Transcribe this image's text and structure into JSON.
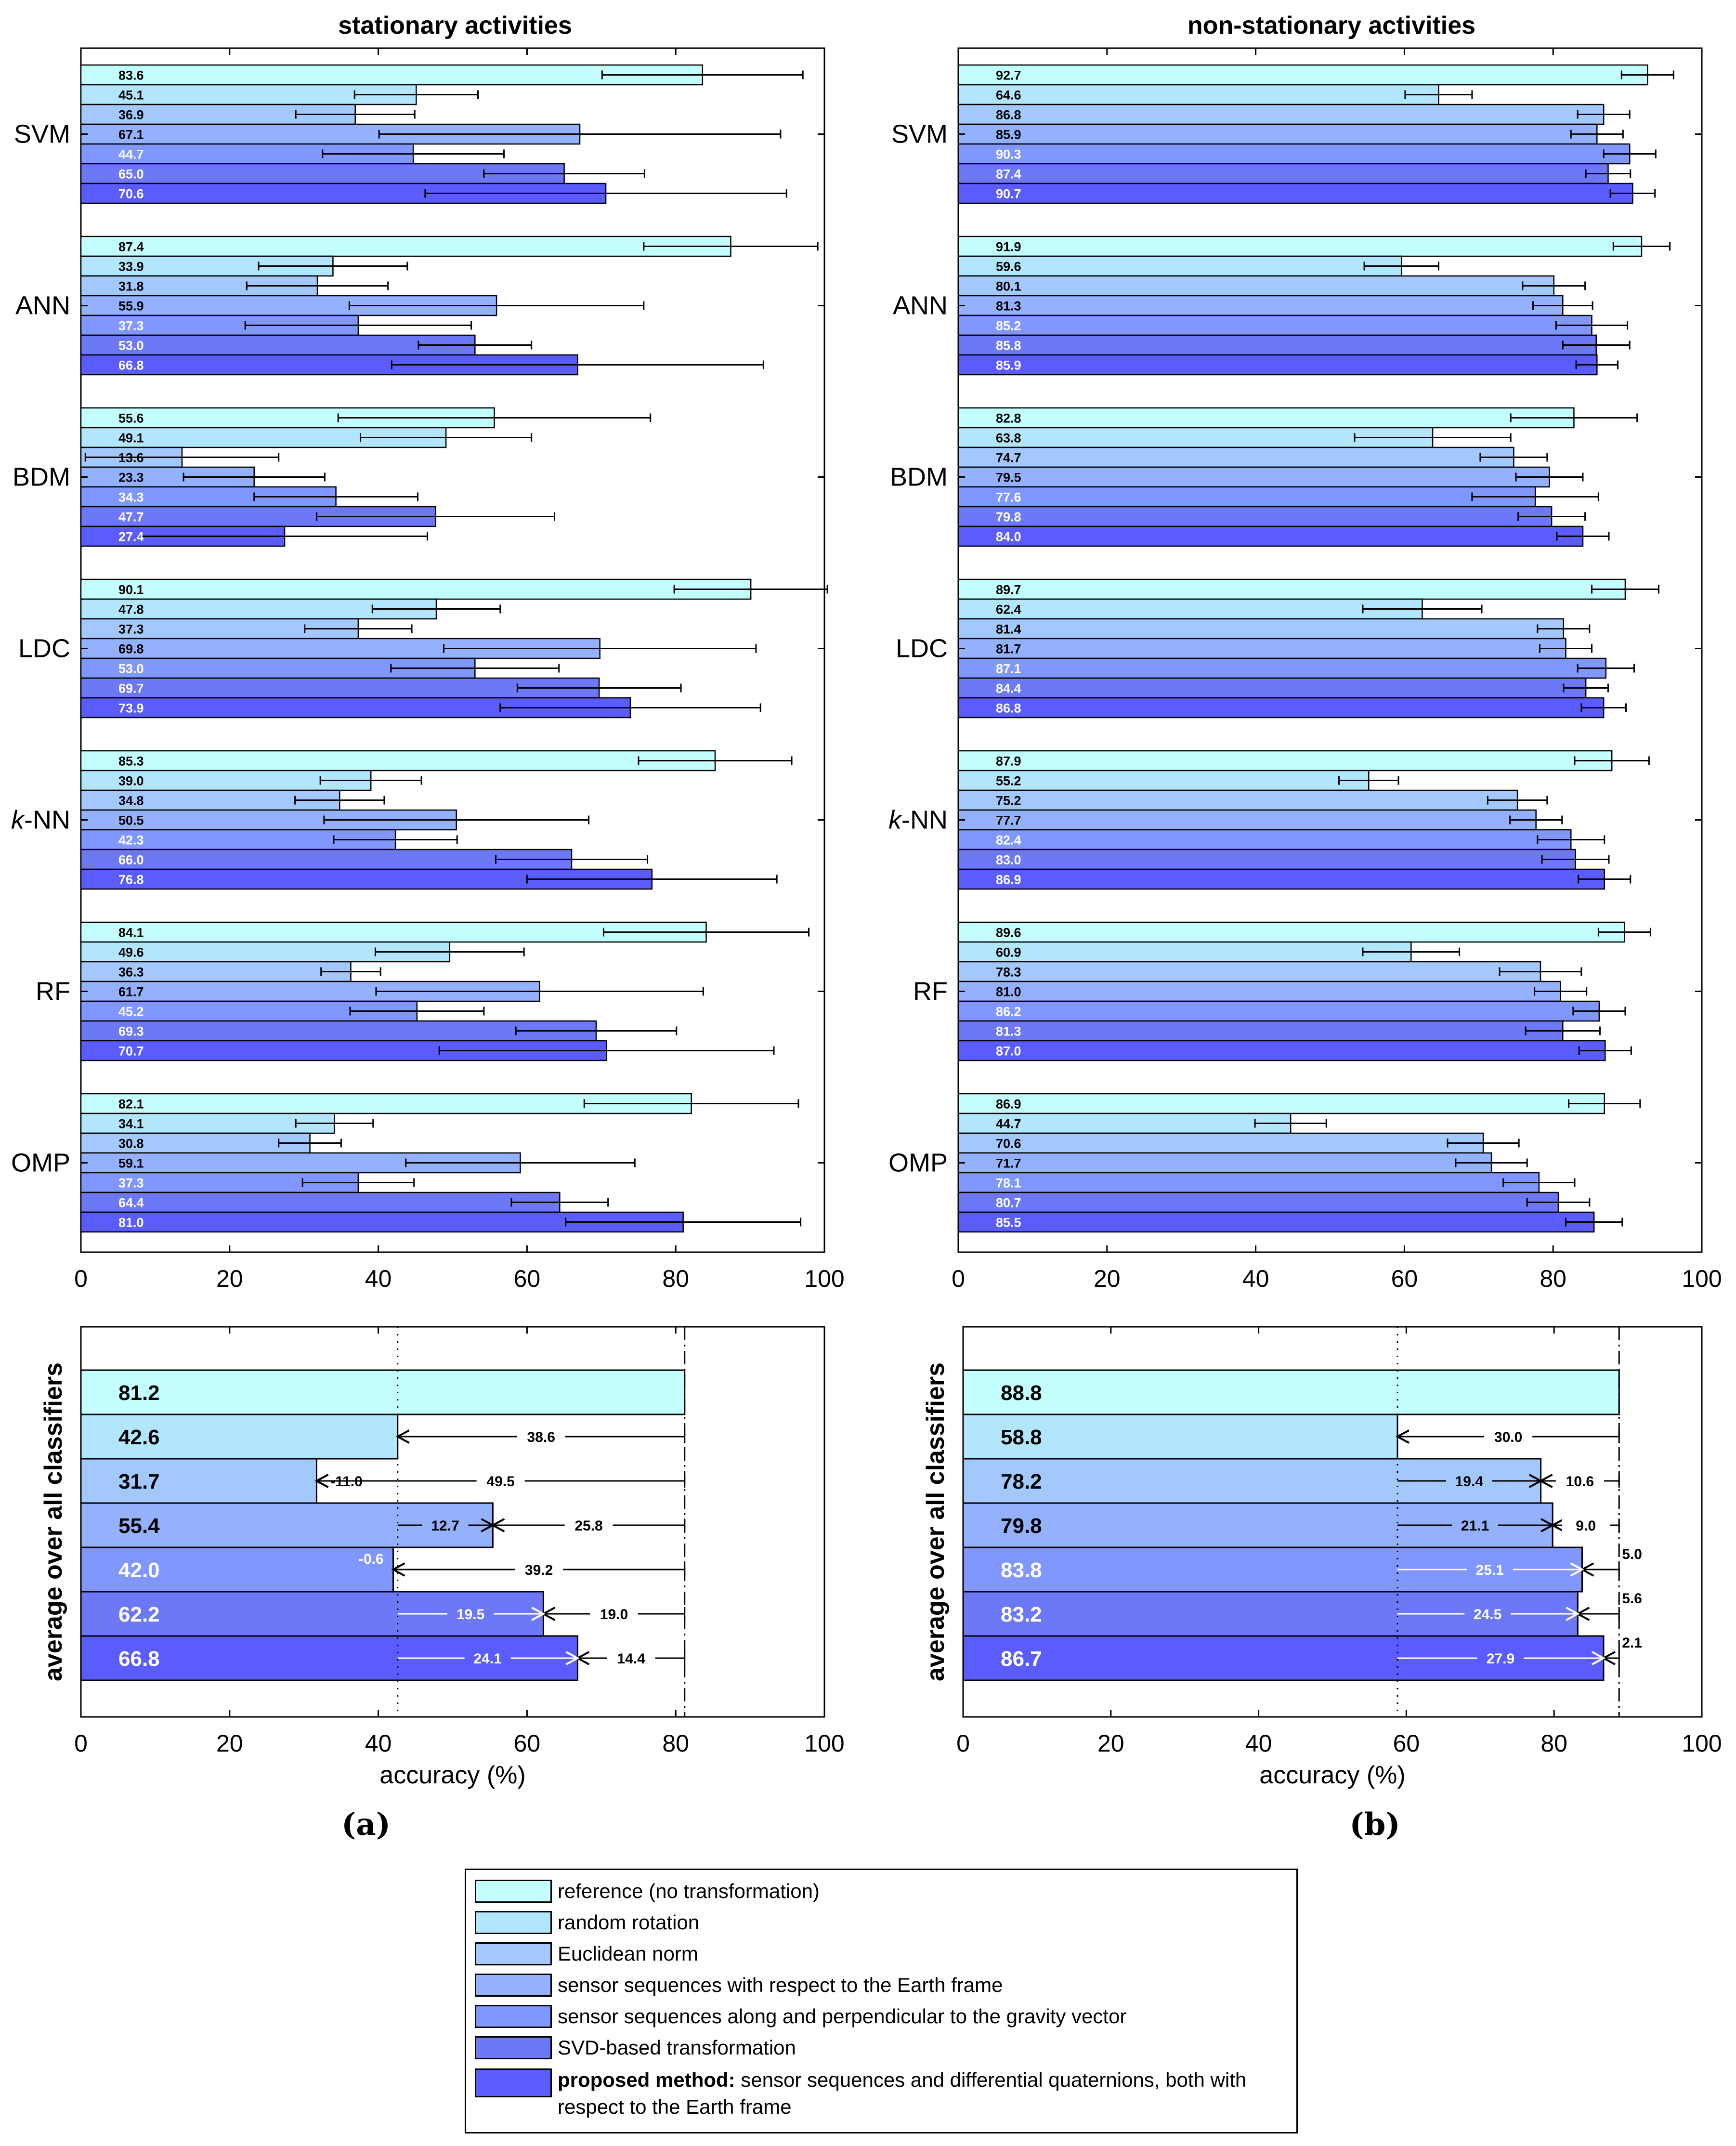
{
  "panels": [
    {
      "title": "stationary activities",
      "subfig_label": "(a)",
      "chart_data": {
        "type": "bar",
        "orientation": "horizontal",
        "xlim": [
          0,
          100
        ],
        "xticks": [
          0,
          20,
          40,
          60,
          80,
          100
        ],
        "groups": [
          {
            "name": "SVM",
            "values": [
              83.6,
              45.1,
              36.9,
              67.1,
              44.7,
              65.0,
              70.6
            ],
            "sd": [
              13.5,
              8.3,
              8.0,
              27.0,
              12.2,
              10.8,
              24.3
            ]
          },
          {
            "name": "ANN",
            "values": [
              87.4,
              33.9,
              31.8,
              55.9,
              37.3,
              53.0,
              66.8
            ],
            "sd": [
              11.7,
              10.0,
              9.5,
              19.8,
              15.2,
              7.6,
              25.0
            ]
          },
          {
            "name": "BDM",
            "values": [
              55.6,
              49.1,
              13.6,
              23.3,
              34.3,
              47.7,
              27.4
            ],
            "sd": [
              21.0,
              11.5,
              13.0,
              9.5,
              11.0,
              16.0,
              19.2
            ]
          },
          {
            "name": "LDC",
            "values": [
              90.1,
              47.8,
              37.3,
              69.8,
              53.0,
              69.7,
              73.9
            ],
            "sd": [
              10.3,
              8.6,
              7.2,
              21.0,
              11.3,
              11.0,
              17.5
            ]
          },
          {
            "name": "k-NN",
            "values": [
              85.3,
              39.0,
              34.8,
              50.5,
              42.3,
              66.0,
              76.8
            ],
            "sd": [
              10.3,
              6.8,
              6.0,
              17.8,
              8.3,
              10.2,
              16.8
            ]
          },
          {
            "name": "RF",
            "values": [
              84.1,
              49.6,
              36.3,
              61.7,
              45.2,
              69.3,
              70.7
            ],
            "sd": [
              13.8,
              10.0,
              4.0,
              22.0,
              9.0,
              10.8,
              22.5
            ]
          },
          {
            "name": "OMP",
            "values": [
              82.1,
              34.1,
              30.8,
              59.1,
              37.3,
              64.4,
              81.0
            ],
            "sd": [
              14.4,
              5.2,
              4.2,
              15.4,
              7.5,
              6.5,
              15.8
            ]
          }
        ]
      },
      "average": {
        "ylabel": "average over all classifiers",
        "xlabel": "accuracy (%)",
        "xlim": [
          0,
          100
        ],
        "xticks": [
          0,
          20,
          40,
          60,
          80,
          100
        ],
        "values": [
          81.2,
          42.6,
          31.7,
          55.4,
          42.0,
          62.2,
          66.8
        ],
        "ref_lines": [
          42.6,
          81.2
        ],
        "diff_left": [
          "",
          "",
          "-11.0",
          "12.7",
          "-0.6",
          "19.5",
          "24.1"
        ],
        "diff_right": [
          "",
          "38.6",
          "49.5",
          "25.8",
          "39.2",
          "19.0",
          "14.4"
        ]
      }
    },
    {
      "title": "non-stationary activities",
      "subfig_label": "(b)",
      "chart_data": {
        "type": "bar",
        "orientation": "horizontal",
        "xlim": [
          0,
          100
        ],
        "xticks": [
          0,
          20,
          40,
          60,
          80,
          100
        ],
        "groups": [
          {
            "name": "SVM",
            "values": [
              92.7,
              64.6,
              86.8,
              85.9,
              90.3,
              87.4,
              90.7
            ],
            "sd": [
              3.5,
              4.5,
              3.5,
              3.5,
              3.5,
              3.0,
              3.0
            ]
          },
          {
            "name": "ANN",
            "values": [
              91.9,
              59.6,
              80.1,
              81.3,
              85.2,
              85.8,
              85.9
            ],
            "sd": [
              3.8,
              5.0,
              4.2,
              4.0,
              4.8,
              4.5,
              2.8
            ]
          },
          {
            "name": "BDM",
            "values": [
              82.8,
              63.8,
              74.7,
              79.5,
              77.6,
              79.8,
              84.0
            ],
            "sd": [
              8.5,
              10.5,
              4.5,
              4.5,
              8.5,
              4.5,
              3.5
            ]
          },
          {
            "name": "LDC",
            "values": [
              89.7,
              62.4,
              81.4,
              81.7,
              87.1,
              84.4,
              86.8
            ],
            "sd": [
              4.5,
              8.0,
              3.5,
              3.5,
              3.8,
              3.0,
              3.0
            ]
          },
          {
            "name": "k-NN",
            "values": [
              87.9,
              55.2,
              75.2,
              77.7,
              82.4,
              83.0,
              86.9
            ],
            "sd": [
              5.0,
              4.0,
              4.0,
              3.5,
              4.5,
              4.5,
              3.5
            ]
          },
          {
            "name": "RF",
            "values": [
              89.6,
              60.9,
              78.3,
              81.0,
              86.2,
              81.3,
              87.0
            ],
            "sd": [
              3.5,
              6.5,
              5.5,
              3.5,
              3.5,
              5.0,
              3.5
            ]
          },
          {
            "name": "OMP",
            "values": [
              86.9,
              44.7,
              70.6,
              71.7,
              78.1,
              80.7,
              85.5
            ],
            "sd": [
              4.8,
              4.8,
              4.8,
              4.8,
              4.8,
              4.2,
              3.8
            ]
          }
        ]
      },
      "average": {
        "ylabel": "average over all classifiers",
        "xlabel": "accuracy (%)",
        "xlim": [
          0,
          100
        ],
        "xticks": [
          0,
          20,
          40,
          60,
          80,
          100
        ],
        "values": [
          88.8,
          58.8,
          78.2,
          79.8,
          83.8,
          83.2,
          86.7
        ],
        "ref_lines": [
          58.8,
          88.8
        ],
        "diff_left": [
          "",
          "",
          "19.4",
          "21.1",
          "25.1",
          "24.5",
          "27.9"
        ],
        "diff_right": [
          "",
          "30.0",
          "10.6",
          "9.0",
          "5.0",
          "5.6",
          "2.1"
        ]
      }
    }
  ],
  "colors": [
    "#c4ffff",
    "#b2e6fd",
    "#a2c8fd",
    "#93b1fd",
    "#7f97ff",
    "#6d78f7",
    "#5a5cfd"
  ],
  "value_label_colors": [
    "#000000",
    "#000000",
    "#000000",
    "#000000",
    "#ffffff",
    "#ffffff",
    "#ffffff"
  ],
  "legend": [
    {
      "bold": "",
      "text": "reference (no transformation)"
    },
    {
      "bold": "",
      "text": "random rotation"
    },
    {
      "bold": "",
      "text": "Euclidean norm"
    },
    {
      "bold": "",
      "text": "sensor sequences with respect to the Earth frame"
    },
    {
      "bold": "",
      "text": "sensor sequences along and perpendicular to the gravity vector"
    },
    {
      "bold": "",
      "text": "SVD-based transformation"
    },
    {
      "bold": "proposed method:",
      "text": "sensor sequences and differential quaternions, both with respect to the Earth frame"
    }
  ]
}
